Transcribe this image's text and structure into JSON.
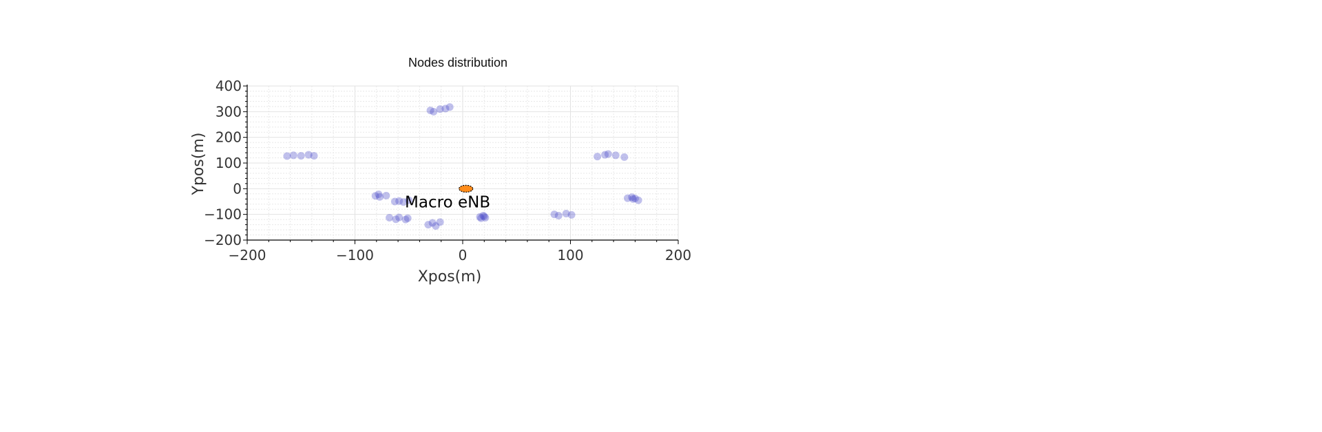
{
  "chart_data": {
    "type": "scatter",
    "title": "Nodes distribution",
    "xlabel": "Xpos(m)",
    "ylabel": "Ypos(m)",
    "xlim": [
      -200,
      200
    ],
    "ylim": [
      -200,
      400
    ],
    "xticks": [
      -200,
      -100,
      0,
      100,
      200
    ],
    "yticks": [
      400,
      300,
      200,
      100,
      0,
      -100,
      -200
    ],
    "xtick_labels": [
      "−200",
      "−100",
      "0",
      "100",
      "200"
    ],
    "ytick_labels": [
      "400",
      "300",
      "200",
      "100",
      "0",
      "−100",
      "−200"
    ],
    "grid": true,
    "colors": {
      "nodes": "#4b4bc8",
      "macro": "#ff8c1a"
    },
    "series": [
      {
        "x": [
          -163,
          -157,
          -150,
          -143,
          -138,
          -81,
          -78,
          -77,
          -71,
          -63,
          -59,
          -55,
          -50,
          -68,
          -62,
          -59,
          -53,
          -51,
          -32,
          -28,
          -25,
          -21,
          -30,
          -27,
          -21,
          -16,
          -12,
          16,
          19,
          21,
          17,
          20,
          85,
          89,
          96,
          101,
          125,
          132,
          135,
          142,
          150,
          153,
          157,
          158,
          160,
          163
        ],
        "y": [
          127,
          130,
          128,
          132,
          128,
          -28,
          -22,
          -32,
          -27,
          -50,
          -48,
          -52,
          -45,
          -113,
          -119,
          -112,
          -120,
          -115,
          -140,
          -133,
          -145,
          -130,
          305,
          300,
          310,
          312,
          318,
          -110,
          -105,
          -113,
          -115,
          -108,
          -100,
          -105,
          -97,
          -102,
          125,
          132,
          135,
          130,
          123,
          -37,
          -33,
          -40,
          -38,
          -45
        ]
      },
      {
        "x": [
          3
        ],
        "y": [
          0
        ]
      }
    ],
    "annotations": [
      {
        "text": "Macro eNB",
        "x": -14,
        "y": -52
      }
    ]
  }
}
